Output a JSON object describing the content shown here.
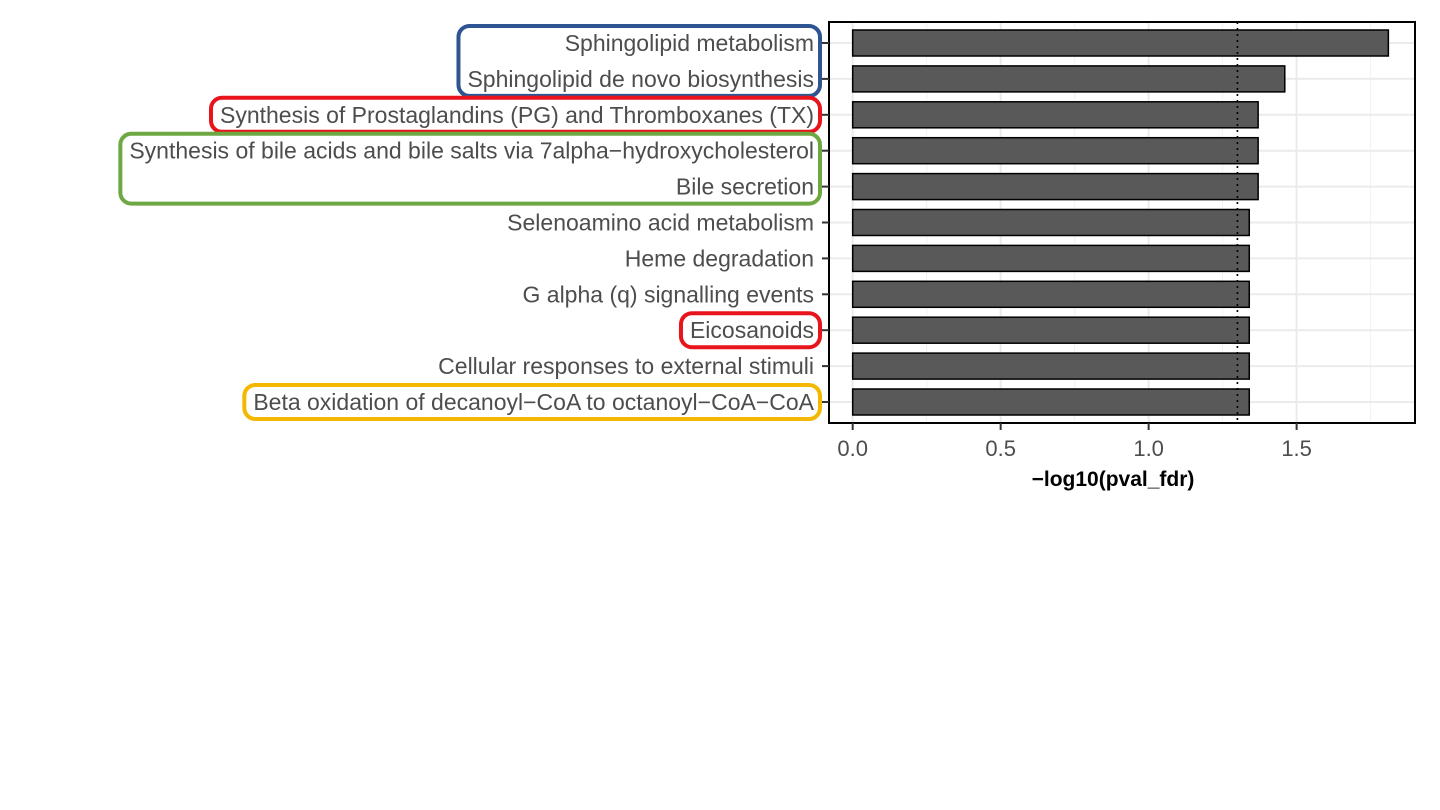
{
  "chart_data": {
    "type": "bar",
    "orientation": "horizontal",
    "xlabel": "−log10(pval_fdr)",
    "ylabel": "",
    "xlim": [
      -0.08,
      1.9
    ],
    "x_ticks": [
      0.0,
      0.5,
      1.0,
      1.5
    ],
    "x_tick_labels": [
      "0.0",
      "0.5",
      "1.0",
      "1.5"
    ],
    "grid": true,
    "threshold_line": {
      "value": 1.3,
      "style": "dotted"
    },
    "bar_color": "#595959",
    "bar_edge_color": "#000000",
    "categories": [
      "Sphingolipid metabolism",
      "Sphingolipid de novo biosynthesis",
      "Synthesis of Prostaglandins (PG) and Thromboxanes (TX)",
      "Synthesis of bile acids and bile salts via 7alpha−hydroxycholesterol",
      "Bile secretion",
      "Selenoamino acid metabolism",
      "Heme degradation",
      "G alpha (q) signalling events",
      "Eicosanoids",
      "Cellular responses to external stimuli",
      "Beta oxidation of decanoyl−CoA to octanoyl−CoA−CoA"
    ],
    "values": [
      1.81,
      1.46,
      1.37,
      1.37,
      1.37,
      1.34,
      1.34,
      1.34,
      1.34,
      1.34,
      1.34
    ],
    "highlight_groups": [
      {
        "color": "#2e5591",
        "items": [
          0,
          1
        ]
      },
      {
        "color": "#e8141b",
        "items": [
          2
        ]
      },
      {
        "color": "#6ea843",
        "items": [
          3,
          4
        ]
      },
      {
        "color": "#e8141b",
        "items": [
          8
        ]
      },
      {
        "color": "#f5b800",
        "items": [
          10
        ]
      }
    ]
  }
}
